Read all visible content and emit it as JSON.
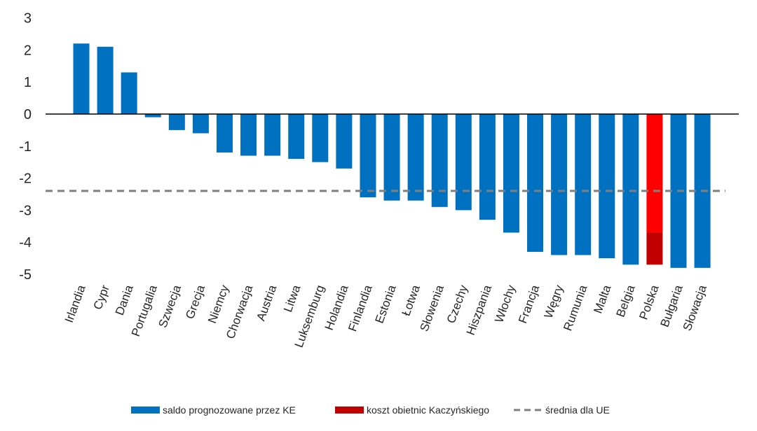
{
  "chart_data": {
    "type": "bar",
    "title": "",
    "xlabel": "",
    "ylabel": "",
    "ylim": [
      -5,
      3
    ],
    "yticks": [
      "3",
      "2",
      "1",
      "0",
      "-1",
      "-2",
      "-3",
      "-4",
      "-5"
    ],
    "grid": false,
    "legend_placement": "bottom",
    "categories": [
      "Irlandia",
      "Cypr",
      "Dania",
      "Portugalia",
      "Szwecja",
      "Grecja",
      "Niemcy",
      "Chorwacja",
      "Austria",
      "Litwa",
      "Luksemburg",
      "Holandia",
      "Finlandia",
      "Estonia",
      "Łotwa",
      "Słowenia",
      "Czechy",
      "Hiszpania",
      "Włochy",
      "Francja",
      "Węgry",
      "Rumunia",
      "Malta",
      "Belgia",
      "Polska",
      "Bułgaria",
      "Słowacja"
    ],
    "series": [
      {
        "name": "saldo prognozowane przez KE",
        "color": "#0070C0",
        "values": [
          2.2,
          2.1,
          1.3,
          -0.1,
          -0.5,
          -0.6,
          -1.2,
          -1.3,
          -1.3,
          -1.4,
          -1.5,
          -1.7,
          -2.6,
          -2.7,
          -2.7,
          -2.9,
          -3.0,
          -3.3,
          -3.7,
          -4.3,
          -4.4,
          -4.4,
          -4.5,
          -4.7,
          -3.7,
          -4.8,
          -4.8
        ]
      },
      {
        "name": "koszt obietnic Kaczyńskiego",
        "color": "#C00000",
        "values": [
          0,
          0,
          0,
          0,
          0,
          0,
          0,
          0,
          0,
          0,
          0,
          0,
          0,
          0,
          0,
          0,
          0,
          0,
          0,
          0,
          0,
          0,
          0,
          0,
          -1.0,
          0,
          0
        ]
      },
      {
        "name": "średnia dla UE",
        "type": "dashed-line",
        "color": "#7F7F7F",
        "value": -2.4
      }
    ],
    "highlight": {
      "category": "Polska",
      "color": "#FF0000"
    }
  }
}
